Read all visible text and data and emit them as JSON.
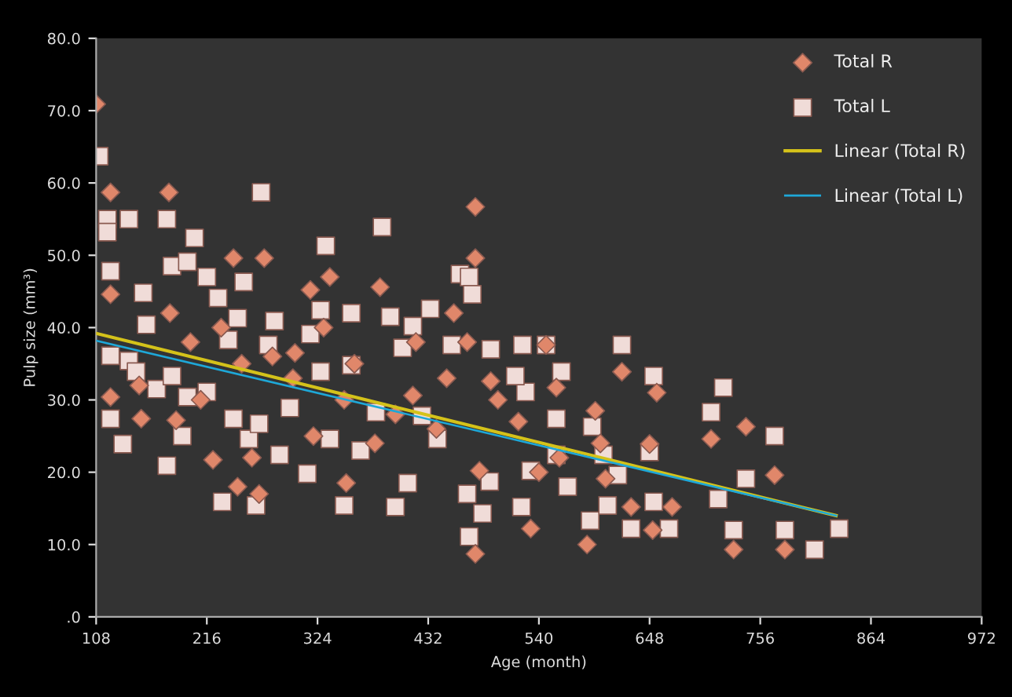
{
  "chart_data": {
    "type": "scatter",
    "xlabel": "Age (month)",
    "ylabel": "Pulp size (mm³)",
    "xlim": [
      108,
      972
    ],
    "ylim": [
      0,
      80
    ],
    "xticks": [
      108,
      216,
      324,
      432,
      540,
      648,
      756,
      864,
      972
    ],
    "yticks": [
      {
        "value": 0,
        "label": ".0"
      },
      {
        "value": 10,
        "label": "10.0"
      },
      {
        "value": 20,
        "label": "20.0"
      },
      {
        "value": 30,
        "label": "30.0"
      },
      {
        "value": 40,
        "label": "40.0"
      },
      {
        "value": 50,
        "label": "50.0"
      },
      {
        "value": 60,
        "label": "60.0"
      },
      {
        "value": 70,
        "label": "70.0"
      },
      {
        "value": 80,
        "label": "80.0"
      }
    ],
    "grid": false,
    "legend": "top right",
    "series": [
      {
        "name": "Total R",
        "marker": "diamond",
        "color": "#e0876a",
        "x": [
          108,
          122,
          179,
          122,
          242,
          272,
          317,
          336,
          385,
          457,
          478,
          478,
          152,
          186,
          222,
          246,
          267,
          352,
          302,
          417,
          493,
          478,
          482,
          122,
          621,
          655,
          708,
          742,
          770,
          730,
          780,
          587,
          630,
          651,
          670,
          532,
          595,
          605,
          648,
          547,
          557,
          250,
          300,
          350,
          400,
          200,
          230,
          280,
          320,
          380,
          440,
          470,
          520,
          560,
          600,
          150,
          180,
          210,
          260,
          330,
          360,
          420,
          450,
          500,
          540
        ],
        "values": [
          70.9,
          58.7,
          58.7,
          44.6,
          49.6,
          49.6,
          45.2,
          47,
          45.6,
          42,
          56.7,
          49.6,
          27.4,
          27.2,
          21.7,
          18,
          17,
          18.5,
          36.5,
          30.6,
          32.6,
          8.7,
          20.2,
          30.4,
          33.9,
          31,
          24.6,
          26.3,
          19.6,
          9.3,
          9.3,
          10,
          15.2,
          12,
          15.2,
          12.2,
          28.5,
          19.1,
          23.9,
          37.6,
          31.7,
          35,
          33,
          30,
          28,
          38,
          40,
          36,
          25,
          24,
          26,
          38,
          27,
          22,
          24,
          32,
          42,
          30,
          22,
          40,
          35,
          38,
          33,
          30,
          20
        ]
      },
      {
        "name": "Total L",
        "marker": "square",
        "color": "#f0dcd8",
        "x": [
          111,
          119,
          140,
          122,
          119,
          177,
          204,
          269,
          332,
          387,
          463,
          472,
          475,
          154,
          182,
          197,
          216,
          252,
          227,
          327,
          357,
          395,
          434,
          417,
          282,
          246,
          157,
          122,
          140,
          122,
          134,
          177,
          192,
          231,
          264,
          350,
          314,
          400,
          412,
          472,
          485,
          492,
          470,
          493,
          455,
          407,
          167,
          182,
          197,
          216,
          242,
          257,
          287,
          317,
          336,
          366,
          381,
          426,
          441,
          147,
          237,
          276,
          357,
          297,
          267,
          327,
          621,
          652,
          720,
          708,
          770,
          742,
          715,
          730,
          780,
          809,
          833,
          630,
          667,
          652,
          607,
          590,
          617,
          648,
          603,
          557,
          562,
          524,
          547,
          527,
          517,
          532,
          523,
          568,
          592,
          557
        ],
        "values": [
          63.7,
          55,
          55,
          47.8,
          53.2,
          55,
          52.4,
          58.7,
          51.3,
          53.9,
          47.4,
          47,
          44.6,
          44.8,
          48.5,
          49.1,
          47,
          46.3,
          44.1,
          42.4,
          42,
          41.5,
          42.6,
          40.2,
          40.9,
          41.3,
          40.4,
          36.1,
          35.4,
          27.4,
          23.9,
          20.9,
          25,
          15.9,
          15.4,
          15.4,
          19.8,
          15.2,
          18.5,
          11.1,
          14.3,
          18.7,
          17,
          37,
          37.6,
          37.2,
          31.5,
          33.3,
          30.4,
          31.1,
          27.4,
          24.6,
          22.4,
          39.1,
          24.6,
          23,
          28.3,
          27.8,
          24.6,
          33.9,
          38.3,
          37.6,
          34.8,
          28.9,
          26.7,
          33.9,
          37.6,
          33.3,
          31.7,
          28.3,
          25,
          19.1,
          16.3,
          12,
          12,
          9.3,
          12.2,
          12.2,
          12.2,
          15.9,
          15.4,
          13.3,
          19.6,
          22.8,
          22.4,
          27.4,
          33.9,
          37.6,
          37.6,
          31.1,
          33.3,
          20.2,
          15.2,
          18,
          26.3,
          22.4
        ]
      },
      {
        "name": "Linear (Total R)",
        "type": "line",
        "marker": "none",
        "color": "#d4c21a",
        "x": [
          108,
          830
        ],
        "values": [
          39.2,
          14
        ]
      },
      {
        "name": "Linear (Total L)",
        "type": "line",
        "marker": "none",
        "color": "#1ea8d8",
        "x": [
          108,
          830
        ],
        "values": [
          38.2,
          14
        ]
      }
    ]
  }
}
